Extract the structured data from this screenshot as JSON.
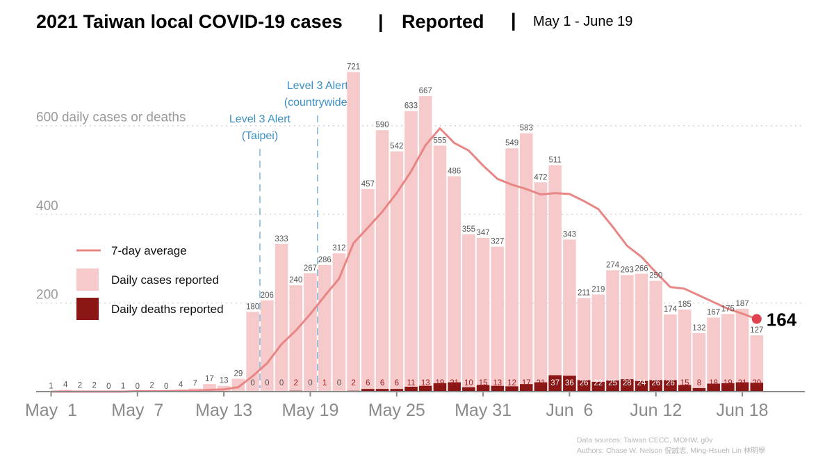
{
  "title": {
    "main": "2021 Taiwan local COVID-19 cases",
    "separator": "|",
    "mode": "Reported",
    "range_separator": "|",
    "range": "May 1 - June 19"
  },
  "legend": {
    "position": "left",
    "items": [
      {
        "label": "7-day average",
        "color": "#e88585",
        "kind": "line"
      },
      {
        "label": "Daily cases reported",
        "color": "#f6c9ca",
        "kind": "box"
      },
      {
        "label": "Daily deaths reported",
        "color": "#8b1616",
        "kind": "box"
      }
    ]
  },
  "annotations": [
    {
      "line1": "Level 3 Alert",
      "line2": "(Taipei)",
      "date_index": 14.5,
      "color": "#3a8fc4"
    },
    {
      "line1": "Level 3 Alert",
      "line2": "(countrywide)",
      "date_index": 18.5,
      "color": "#3a8fc4"
    }
  ],
  "credits": {
    "line1": "Data sources: Taiwan CECC, MOHW, g0v",
    "line2": "Authors: Chase W. Nelson 倪誠志, Ming-Hsueh Lin 林明學"
  },
  "final_label": "164",
  "chart_data": {
    "type": "bar",
    "title": "2021 Taiwan local COVID-19 cases | Reported",
    "subtitle": "May 1 - June 19",
    "ylabel": "600 daily cases or deaths",
    "ylim": [
      0,
      760
    ],
    "y_ticks": [
      {
        "value": 200,
        "label": "200"
      },
      {
        "value": 400,
        "label": "400"
      },
      {
        "value": 600,
        "label": "600 daily cases or deaths"
      }
    ],
    "grid": true,
    "x_ticks": [
      {
        "index": 0,
        "label": "May  1"
      },
      {
        "index": 6,
        "label": "May  7"
      },
      {
        "index": 12,
        "label": "May 13"
      },
      {
        "index": 18,
        "label": "May 19"
      },
      {
        "index": 24,
        "label": "May 25"
      },
      {
        "index": 30,
        "label": "May 31"
      },
      {
        "index": 36,
        "label": "Jun  6"
      },
      {
        "index": 42,
        "label": "Jun 12"
      },
      {
        "index": 48,
        "label": "Jun 18"
      }
    ],
    "series": [
      {
        "name": "Daily cases reported",
        "color": "#f6c9ca",
        "values": [
          1,
          4,
          2,
          2,
          0,
          1,
          0,
          2,
          0,
          4,
          7,
          17,
          13,
          29,
          180,
          206,
          333,
          240,
          267,
          286,
          312,
          721,
          457,
          590,
          542,
          633,
          667,
          555,
          486,
          355,
          347,
          327,
          549,
          583,
          472,
          511,
          343,
          211,
          219,
          274,
          263,
          266,
          250,
          174,
          185,
          132,
          167,
          175,
          187,
          127
        ]
      },
      {
        "name": "Daily deaths reported",
        "color": "#8b1616",
        "values": [
          0,
          0,
          0,
          0,
          0,
          0,
          0,
          0,
          0,
          0,
          0,
          0,
          0,
          0,
          0,
          0,
          0,
          2,
          0,
          1,
          0,
          2,
          6,
          6,
          6,
          11,
          13,
          19,
          21,
          10,
          15,
          13,
          12,
          17,
          21,
          37,
          36,
          26,
          22,
          25,
          28,
          24,
          26,
          26,
          15,
          8,
          18,
          19,
          21,
          20
        ]
      },
      {
        "name": "7-day average",
        "color": "#e88585",
        "values": [
          0,
          0,
          0,
          0,
          0,
          0,
          1,
          1,
          1,
          2,
          2,
          4,
          5,
          10,
          35,
          64,
          107,
          138,
          175,
          216,
          255,
          335,
          370,
          406,
          448,
          497,
          556,
          594,
          561,
          544,
          510,
          480,
          467,
          457,
          445,
          448,
          446,
          430,
          412,
          372,
          329,
          304,
          269,
          236,
          232,
          217,
          202,
          187,
          176,
          164
        ]
      }
    ]
  }
}
